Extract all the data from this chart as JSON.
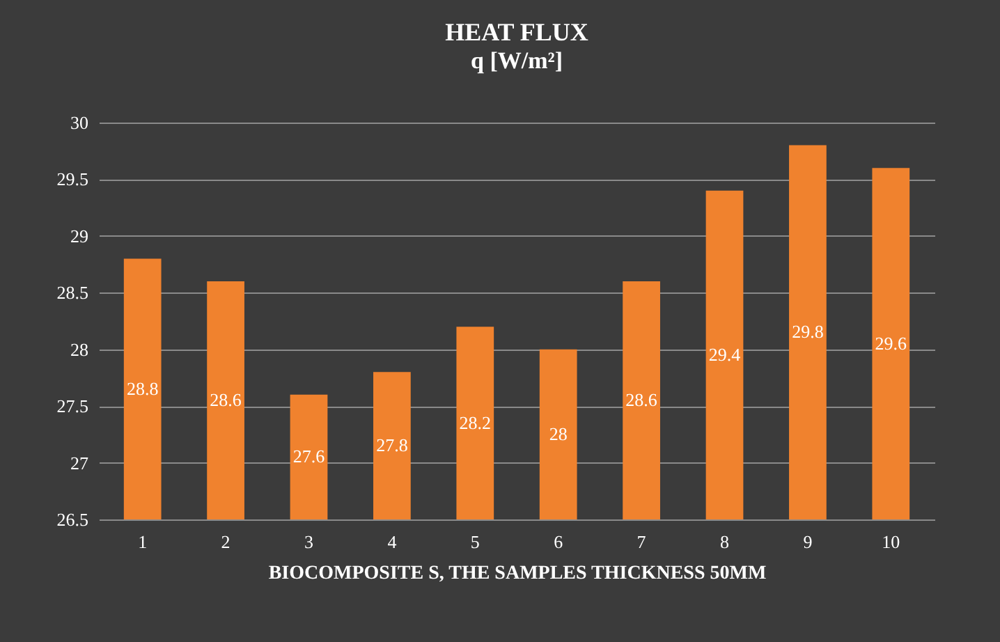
{
  "chart_data": {
    "type": "bar",
    "title": "HEAT FLUX",
    "subtitle": "q [W/m²]",
    "xlabel": "BIOCOMPOSITE S, THE SAMPLES THICKNESS 50MM",
    "categories": [
      "1",
      "2",
      "3",
      "4",
      "5",
      "6",
      "7",
      "8",
      "9",
      "10"
    ],
    "values": [
      28.8,
      28.6,
      27.6,
      27.8,
      28.2,
      28,
      28.6,
      29.4,
      29.8,
      29.6
    ],
    "color": "#f0822e",
    "ylim": [
      26.5,
      30
    ],
    "yticks": [
      26.5,
      27,
      27.5,
      28,
      28.5,
      29,
      29.5,
      30
    ],
    "grid": "y",
    "data_labels": true
  }
}
